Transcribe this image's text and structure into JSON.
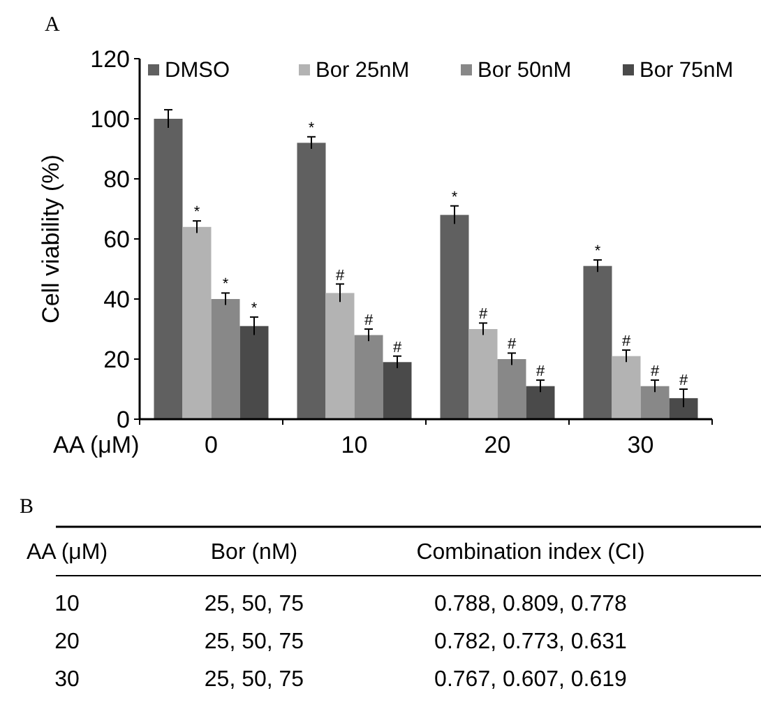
{
  "chart_data": [
    {
      "type": "bar",
      "title": "A",
      "ylabel": "Cell viability (%)",
      "xlabel": "AA (μM)",
      "categories": [
        "0",
        "10",
        "20",
        "30"
      ],
      "ylim": [
        0,
        120
      ],
      "yticks": [
        0,
        20,
        40,
        60,
        80,
        100,
        120
      ],
      "legend": "top",
      "grid": false,
      "series": [
        {
          "name": "DMSO",
          "color": "#606060",
          "values": [
            100,
            92,
            68,
            51
          ],
          "errors": [
            3,
            2,
            3,
            2
          ],
          "value_labels": [
            null,
            "*",
            "*",
            "*"
          ]
        },
        {
          "name": "Bor 25nM",
          "color": "#b3b3b3",
          "values": [
            64,
            42,
            30,
            21
          ],
          "errors": [
            2,
            3,
            2,
            2
          ],
          "value_labels": [
            "*",
            "#",
            "#",
            "#"
          ]
        },
        {
          "name": "Bor 50nM",
          "color": "#888888",
          "values": [
            40,
            28,
            20,
            11
          ],
          "errors": [
            2,
            2,
            2,
            2
          ],
          "value_labels": [
            "*",
            "#",
            "#",
            "#"
          ]
        },
        {
          "name": "Bor 75nM",
          "color": "#4a4a4a",
          "values": [
            31,
            19,
            11,
            7
          ],
          "errors": [
            3,
            2,
            2,
            3
          ],
          "value_labels": [
            "*",
            "#",
            "#",
            "#"
          ]
        }
      ]
    },
    {
      "type": "other",
      "title": "B",
      "annotations": [
        "AA (μM)",
        "Bor (nM)",
        "Combination index (CI)",
        "10",
        "25, 50, 75",
        "0.788, 0.809, 0.778",
        "20",
        "25, 50, 75",
        "0.782, 0.773, 0.631",
        "30",
        "25, 50, 75",
        "0.767, 0.607, 0.619"
      ]
    }
  ]
}
